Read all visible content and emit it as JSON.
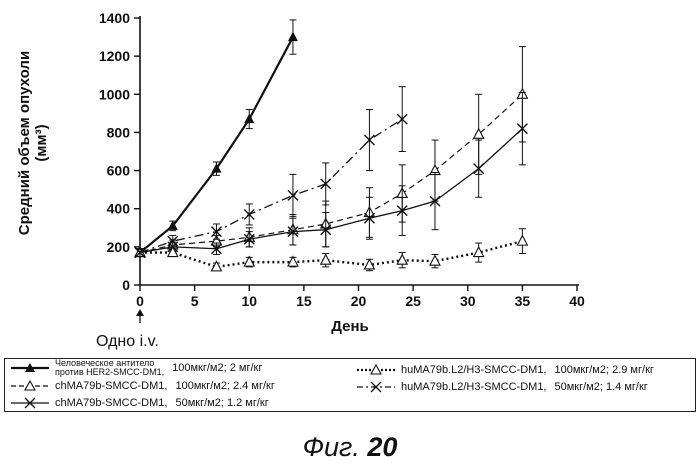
{
  "chart_data": {
    "type": "line",
    "ylabel": "Средний объем опухоли (мм³)",
    "xlabel": "День",
    "xlim": [
      0,
      40
    ],
    "ylim": [
      0,
      1400
    ],
    "xticks": [
      0,
      5,
      10,
      15,
      20,
      25,
      30,
      35,
      40
    ],
    "yticks": [
      0,
      200,
      400,
      600,
      800,
      1000,
      1200,
      1400
    ],
    "grid": false,
    "legend_position": "bottom",
    "annotation": "Одно i.v.",
    "series": [
      {
        "name_line1": "Человеческое антитело",
        "name_line2": "против HER2-SMCC-DM1,",
        "dose": "100мкг/м2; 2 мг/кг",
        "marker": "filled-triangle",
        "line": "solid-bold",
        "x": [
          0,
          3,
          7,
          10,
          14
        ],
        "values": [
          170,
          310,
          610,
          870,
          1300
        ],
        "errors": [
          20,
          25,
          35,
          50,
          90
        ]
      },
      {
        "name": "chMA79b-SMCC-DM1,",
        "dose": "100мкг/м2; 2.4 мг/кг",
        "marker": "open-triangle",
        "line": "dashed",
        "x": [
          0,
          3,
          7,
          10,
          14,
          17,
          21,
          24,
          27,
          31,
          35
        ],
        "values": [
          170,
          210,
          230,
          250,
          290,
          320,
          380,
          480,
          600,
          790,
          1000
        ],
        "errors": [
          20,
          25,
          30,
          50,
          80,
          120,
          130,
          150,
          160,
          210,
          250
        ]
      },
      {
        "name": "chMA79b-SMCC-DM1,",
        "dose": "50мкг/м2; 1.2 мг/кг",
        "marker": "x",
        "line": "solid",
        "x": [
          0,
          3,
          7,
          10,
          14,
          17,
          21,
          24,
          27,
          31,
          35
        ],
        "values": [
          170,
          200,
          190,
          240,
          280,
          290,
          350,
          390,
          440,
          610,
          820
        ],
        "errors": [
          20,
          25,
          30,
          40,
          70,
          90,
          110,
          130,
          150,
          150,
          190
        ]
      },
      {
        "name": "huMA79b.L2/H3-SMCC-DM1,",
        "dose": "100мкг/м2; 2.9 мг/кг",
        "marker": "open-triangle",
        "line": "dotted-bold",
        "x": [
          0,
          3,
          7,
          10,
          14,
          17,
          21,
          24,
          27,
          31,
          35
        ],
        "values": [
          170,
          170,
          95,
          120,
          120,
          130,
          105,
          130,
          125,
          170,
          230
        ],
        "errors": [
          15,
          20,
          20,
          25,
          25,
          35,
          30,
          40,
          35,
          50,
          65
        ]
      },
      {
        "name": "huMA79b.L2/H3-SMCC-DM1,",
        "dose": "50мкг/м2; 1.4 мг/кг",
        "marker": "x",
        "line": "dash-dot",
        "x": [
          0,
          3,
          7,
          10,
          14,
          17,
          21,
          24
        ],
        "values": [
          170,
          230,
          280,
          370,
          470,
          530,
          760,
          870
        ],
        "errors": [
          20,
          30,
          40,
          55,
          110,
          110,
          160,
          170
        ]
      }
    ]
  },
  "caption": {
    "prefix": "Фиг. ",
    "number": "20"
  }
}
